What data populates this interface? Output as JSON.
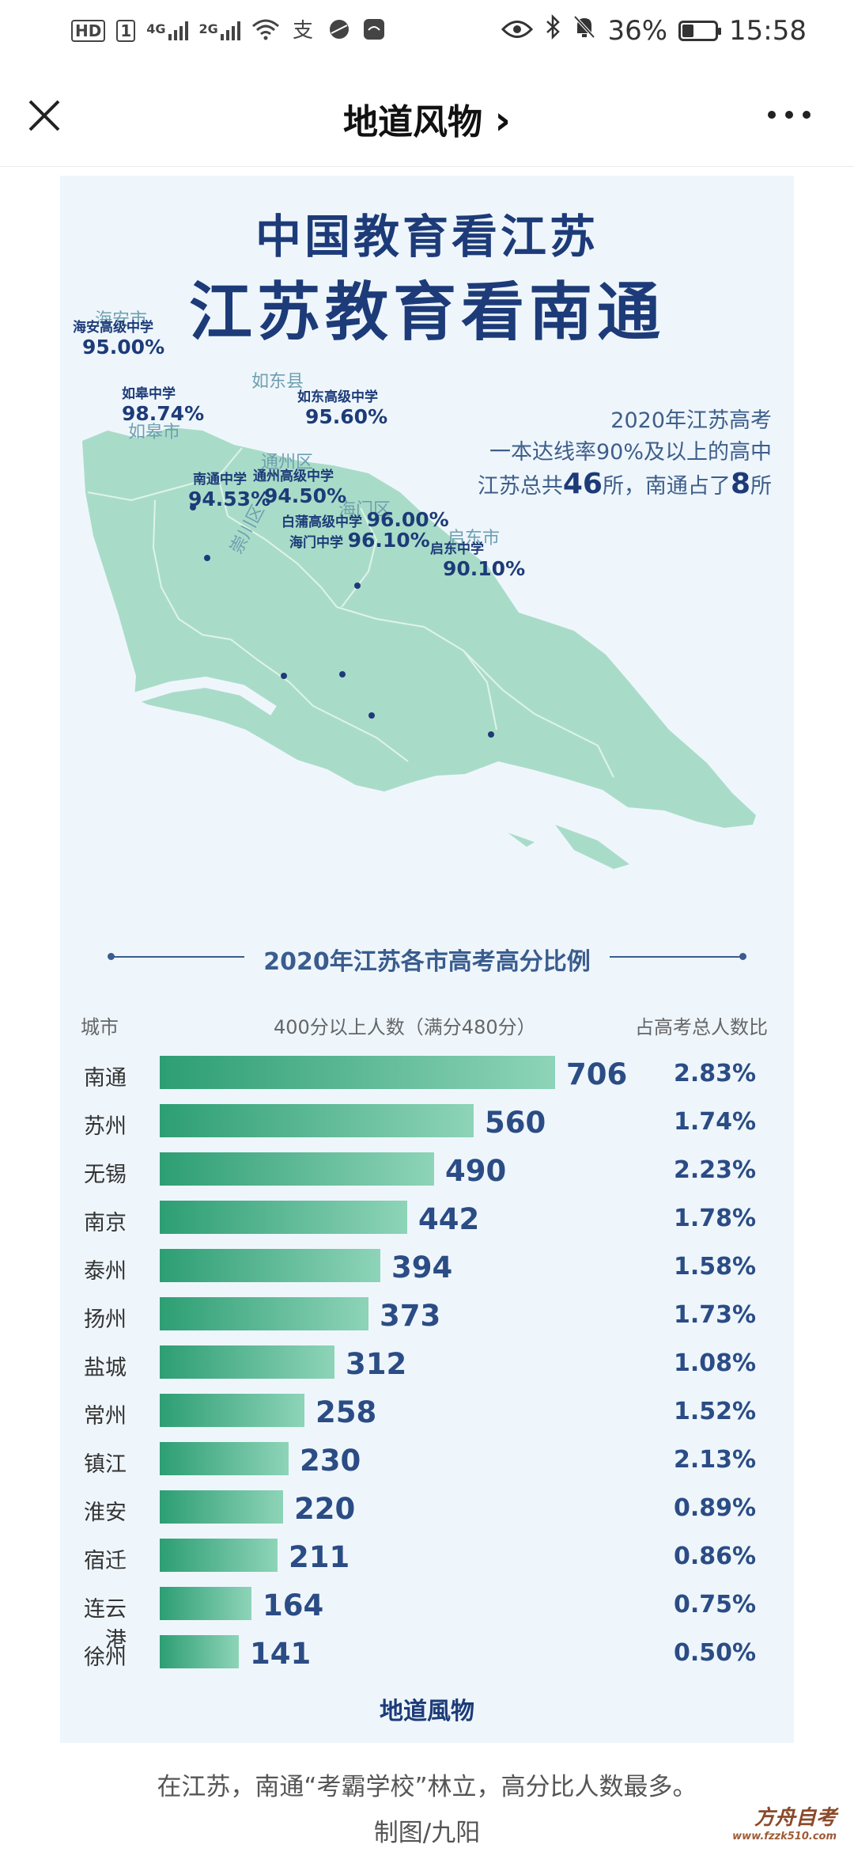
{
  "status_bar": {
    "hd_label": "HD",
    "sim1": "1",
    "net1": "4G",
    "net2": "2G",
    "battery": "36%",
    "battery_level": 0.36,
    "time": "15:58",
    "icons": [
      "signal-icon",
      "wifi-icon",
      "alipay-icon",
      "browser-icon",
      "huawei-icon",
      "eye-icon",
      "bluetooth-icon",
      "mute-bell-icon",
      "battery-icon"
    ]
  },
  "navbar": {
    "title": "地道风物",
    "title_chevron": "›",
    "close_icon": "close-icon",
    "more_icon": "more-icon"
  },
  "poster": {
    "title_line1": "中国教育看江苏",
    "title_line2": "江苏教育看南通",
    "note": {
      "line1": "2020年江苏高考",
      "line2": "一本达线率90%及以上的高中",
      "line3_a": "江苏总共",
      "line3_b": "46",
      "line3_c": "所，南通占了",
      "line3_d": "8",
      "line3_e": "所"
    },
    "map": {
      "districts": [
        "海安市",
        "如东县",
        "如皋市",
        "通州区",
        "崇川区",
        "海门区",
        "启东市"
      ],
      "schools": [
        {
          "name": "海安高级中学",
          "rate": "95.00%"
        },
        {
          "name": "如皋中学",
          "rate": "98.74%"
        },
        {
          "name": "如东高级中学",
          "rate": "95.60%"
        },
        {
          "name": "南通中学",
          "rate": "94.53%"
        },
        {
          "name": "通州高级中学",
          "rate": "94.50%"
        },
        {
          "name": "白蒲高级中学",
          "rate": "96.00%"
        },
        {
          "name": "海门中学",
          "rate": "96.10%"
        },
        {
          "name": "启东中学",
          "rate": "90.10%"
        }
      ],
      "colors": {
        "land": "#a9dcc8",
        "border": "#dff3ea",
        "sea": "#eef6fc"
      }
    },
    "section_title": "2020年江苏各市高考高分比例",
    "columns": {
      "city": "城市",
      "count": "400分以上人数（满分480分）",
      "share": "占高考总人数比"
    },
    "footer_brand": "地道風物"
  },
  "chart_data": {
    "type": "bar",
    "title": "2020年江苏各市高考高分比例",
    "categories": [
      "南通",
      "苏州",
      "无锡",
      "南京",
      "泰州",
      "扬州",
      "盐城",
      "常州",
      "镇江",
      "淮安",
      "宿迁",
      "连云港",
      "徐州"
    ],
    "series": [
      {
        "name": "400分以上人数（满分480分）",
        "values": [
          706,
          560,
          490,
          442,
          394,
          373,
          312,
          258,
          230,
          220,
          211,
          164,
          141
        ]
      },
      {
        "name": "占高考总人数比",
        "values": [
          "2.83%",
          "1.74%",
          "2.23%",
          "1.78%",
          "1.58%",
          "1.73%",
          "1.08%",
          "1.52%",
          "2.13%",
          "0.89%",
          "0.86%",
          "0.75%",
          "0.50%"
        ]
      }
    ],
    "orientation": "horizontal",
    "bar_color": "#2d9e73",
    "value_color": "#2b4c84"
  },
  "caption": "在江苏，南通“考霸学校”林立，高分比人数最多。",
  "credit": "制图/九阳",
  "watermark": {
    "line1": "方舟自考",
    "line2": "www.fzzk510.com"
  }
}
